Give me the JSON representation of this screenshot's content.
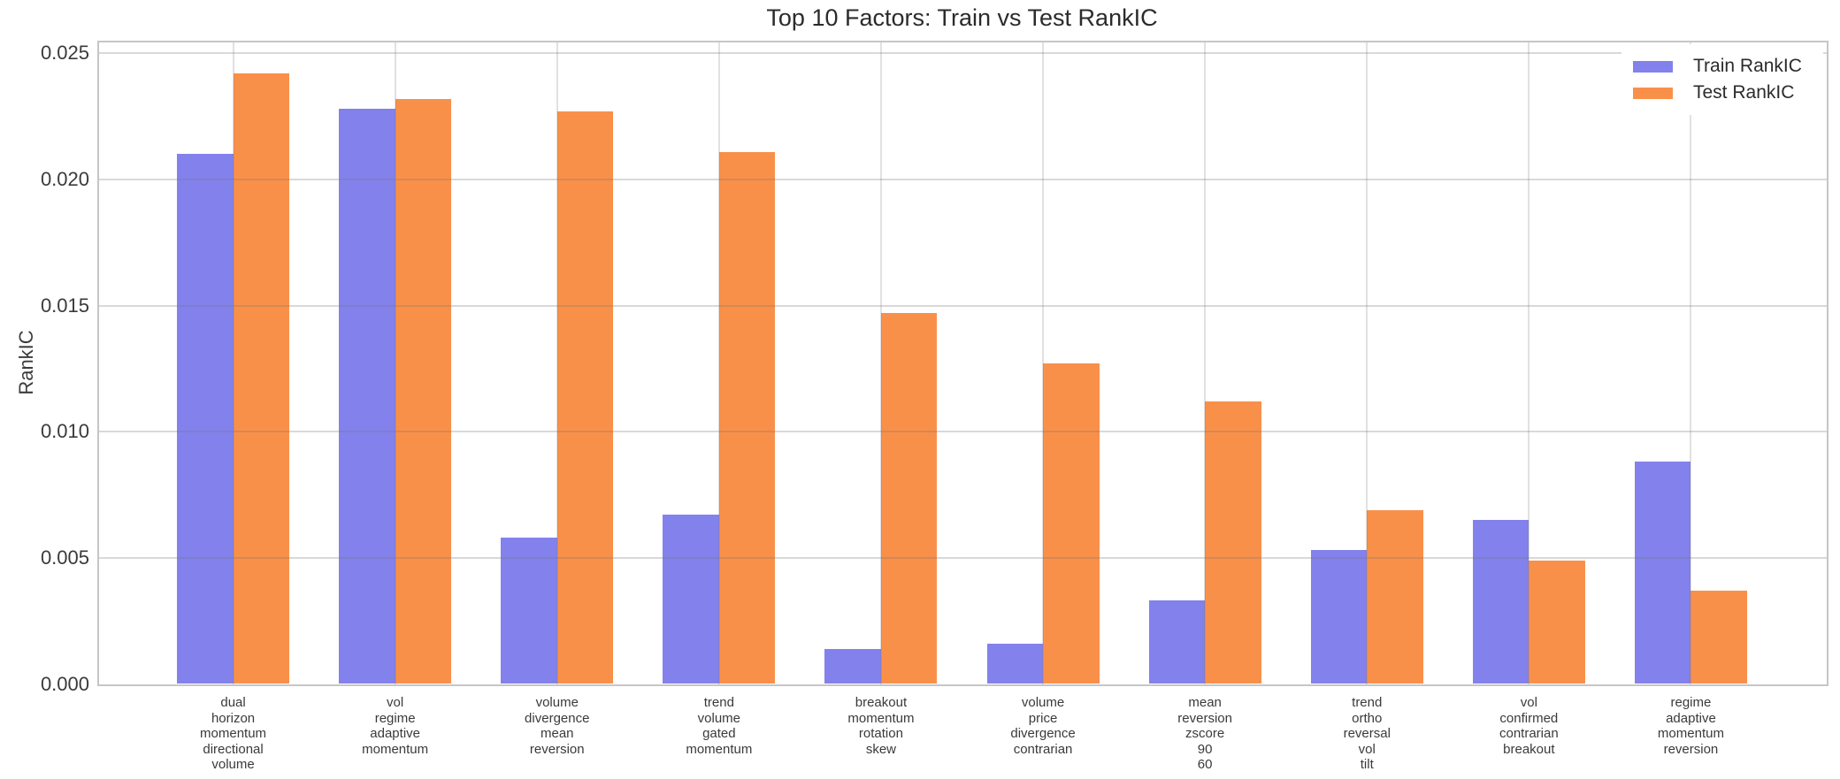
{
  "chart_data": {
    "type": "bar",
    "title": "Top 10 Factors: Train vs Test RankIC",
    "ylabel": "RankIC",
    "xlabel": "",
    "ylim": [
      0,
      0.0255
    ],
    "yticks": [
      0,
      0.005,
      0.01,
      0.015,
      0.02,
      0.025
    ],
    "ytick_labels": [
      "0.000",
      "0.005",
      "0.010",
      "0.015",
      "0.020",
      "0.025"
    ],
    "grid": true,
    "legend_position": "upper right",
    "categories": [
      [
        "dual",
        "horizon",
        "momentum",
        "directional",
        "volume"
      ],
      [
        "vol",
        "regime",
        "adaptive",
        "momentum"
      ],
      [
        "volume",
        "divergence",
        "mean",
        "reversion"
      ],
      [
        "trend",
        "volume",
        "gated",
        "momentum"
      ],
      [
        "breakout",
        "momentum",
        "rotation",
        "skew"
      ],
      [
        "volume",
        "price",
        "divergence",
        "contrarian"
      ],
      [
        "mean",
        "reversion",
        "zscore",
        "90",
        "60"
      ],
      [
        "trend",
        "ortho",
        "reversal",
        "vol",
        "tilt"
      ],
      [
        "vol",
        "confirmed",
        "contrarian",
        "breakout"
      ],
      [
        "regime",
        "adaptive",
        "momentum",
        "reversion"
      ]
    ],
    "series": [
      {
        "name": "Train RankIC",
        "color": "#8381ec",
        "values": [
          0.021,
          0.0228,
          0.0058,
          0.0067,
          0.0014,
          0.0016,
          0.0033,
          0.0053,
          0.0065,
          0.0088
        ]
      },
      {
        "name": "Test RankIC",
        "color": "#f9904a",
        "values": [
          0.0242,
          0.0232,
          0.0227,
          0.0211,
          0.0147,
          0.0127,
          0.0112,
          0.0069,
          0.0049,
          0.0037
        ]
      }
    ]
  }
}
